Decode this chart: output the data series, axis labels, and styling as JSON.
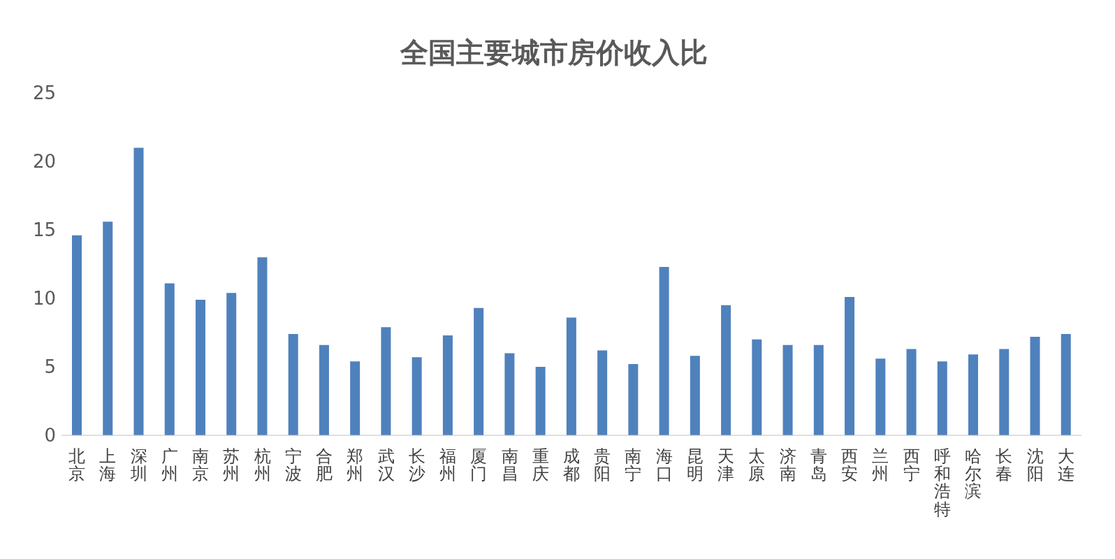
{
  "chart_data": {
    "type": "bar",
    "title": "全国主要城市房价收入比",
    "categories": [
      "北京",
      "上海",
      "深圳",
      "广州",
      "南京",
      "苏州",
      "杭州",
      "宁波",
      "合肥",
      "郑州",
      "武汉",
      "长沙",
      "福州",
      "厦门",
      "南昌",
      "重庆",
      "成都",
      "贵阳",
      "南宁",
      "海口",
      "昆明",
      "天津",
      "太原",
      "济南",
      "青岛",
      "西安",
      "兰州",
      "西宁",
      "呼和浩特",
      "哈尔滨",
      "长春",
      "沈阳",
      "大连"
    ],
    "values": [
      14.6,
      15.6,
      21.0,
      11.1,
      9.9,
      10.4,
      13.0,
      7.4,
      6.6,
      5.4,
      7.9,
      5.7,
      7.3,
      9.3,
      6.0,
      5.0,
      8.6,
      6.2,
      5.2,
      12.3,
      5.8,
      9.5,
      7.0,
      6.6,
      6.6,
      10.1,
      5.6,
      6.3,
      5.4,
      5.9,
      6.3,
      7.2,
      7.4
    ],
    "color": "#4f81bd",
    "ylim": [
      0,
      25
    ],
    "yticks": [
      0,
      5,
      10,
      15,
      20,
      25
    ],
    "grid": false
  }
}
